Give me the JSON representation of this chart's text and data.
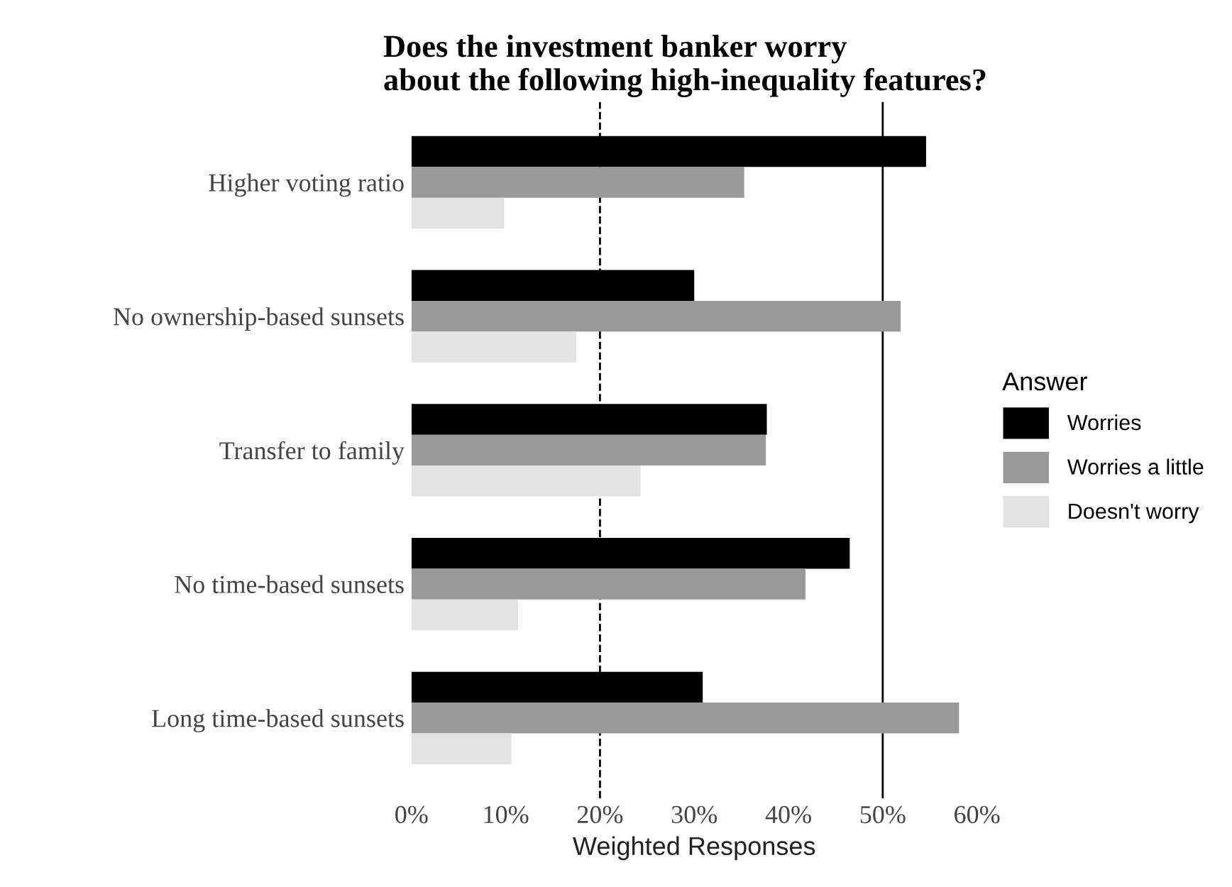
{
  "chart_data": {
    "type": "bar",
    "orientation": "horizontal",
    "title": "Does the investment banker worry\nabout the following high-inequality features?",
    "xlabel": "Weighted Responses",
    "legend_title": "Answer",
    "legend": "right",
    "grid": false,
    "categories": [
      "Higher voting ratio",
      "No ownership-based sunsets",
      "Transfer to family",
      "No time-based sunsets",
      "Long time-based sunsets"
    ],
    "series": [
      {
        "name": "Worries",
        "color": "#000000",
        "values": [
          54.6,
          30.0,
          37.7,
          46.5,
          30.9
        ]
      },
      {
        "name": "Worries a little",
        "color": "#999999",
        "values": [
          35.3,
          51.9,
          37.6,
          41.8,
          58.1
        ]
      },
      {
        "name": "Doesn't worry",
        "color": "#e3e3e3",
        "values": [
          9.8,
          17.5,
          24.3,
          11.3,
          10.6
        ]
      }
    ],
    "xlim": [
      0,
      60
    ],
    "xticks": [
      {
        "value": 0,
        "label": "0%"
      },
      {
        "value": 10,
        "label": "10%"
      },
      {
        "value": 20,
        "label": "20%"
      },
      {
        "value": 30,
        "label": "30%"
      },
      {
        "value": 40,
        "label": "40%"
      },
      {
        "value": 50,
        "label": "50%"
      },
      {
        "value": 60,
        "label": "60%"
      }
    ],
    "ref_lines": [
      {
        "axis": "x",
        "value": 20,
        "line_style": "dashed",
        "color": "#000000"
      },
      {
        "axis": "x",
        "value": 50,
        "line_style": "solid",
        "color": "#000000"
      }
    ]
  }
}
